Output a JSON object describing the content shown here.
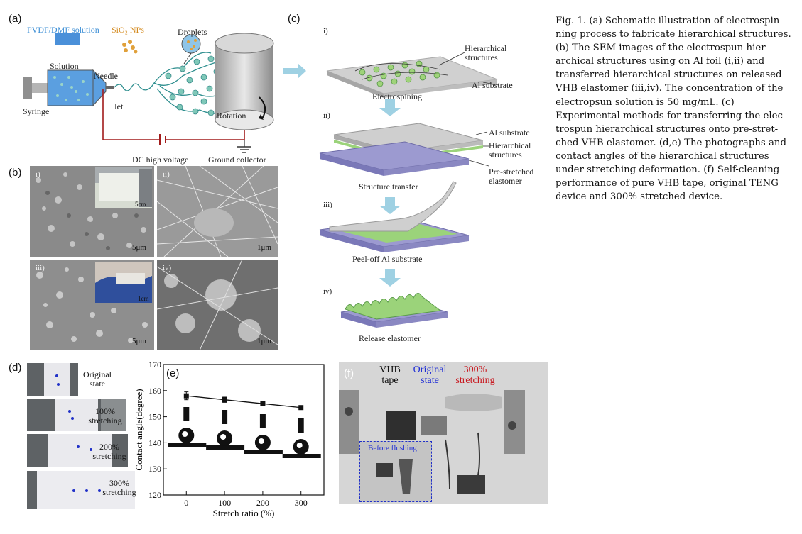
{
  "panels": {
    "a": "(a)",
    "b": "(b)",
    "c": "(c)",
    "d": "(d)",
    "e": "(e)",
    "f": "(f)"
  },
  "schematic": {
    "pvdf": "PVDF/DMF solution",
    "sio2": "SiO₂ NPs",
    "droplets": "Droplets",
    "solution": "Solution",
    "needle": "Needle",
    "syringe": "Syringe",
    "jet": "Jet",
    "rotation": "Rotation",
    "dc_voltage": "DC high voltage",
    "ground": "Ground collector"
  },
  "sem": {
    "labels": [
      "i)",
      "ii)",
      "iii)",
      "iv)"
    ],
    "scale": [
      "5μm",
      "1μm",
      "5μm",
      "1μm"
    ],
    "inset_scale": [
      "5cm",
      "1cm"
    ]
  },
  "process": {
    "steps": [
      "i)",
      "ii)",
      "iii)",
      "iv)"
    ],
    "hier1": "Hierarchical structures",
    "al1": "Al substrate",
    "cap1": "Electrospining",
    "al2": "Al substrate",
    "hier2": "Hierarchical structures",
    "pre": "Pre-stretched elastomer",
    "cap2": "Structure transfer",
    "cap3": "Peel-off Al substrate",
    "cap4": "Release elastomer"
  },
  "photos_d": [
    {
      "label": "Original state"
    },
    {
      "label": "100% stretching"
    },
    {
      "label": "200% stretching"
    },
    {
      "label": "300% stretching"
    }
  ],
  "chart_data": {
    "type": "line",
    "x": [
      0,
      100,
      200,
      300
    ],
    "series": [
      {
        "values": [
          158,
          156.5,
          155,
          153.5
        ],
        "errors": [
          1.5,
          1,
          0.8,
          0.5
        ]
      }
    ],
    "xlabel": "Stretch ratio (%)",
    "ylabel": "Contact angle(degree)",
    "xticks": [
      "0",
      "100",
      "200",
      "300"
    ],
    "yticks": [
      "120",
      "130",
      "140",
      "150",
      "160",
      "170"
    ],
    "ylim": [
      120,
      170
    ],
    "xlim": [
      -60,
      360
    ],
    "grid": false,
    "legend": "none"
  },
  "panel_f": {
    "vhb": "VHB tape",
    "original": "Original state",
    "stretch": "300% stretching",
    "before": "Before flushing",
    "colors": {
      "vhb": "#111111",
      "original": "#1f2dd6",
      "stretch": "#c8161d"
    }
  },
  "caption": {
    "lines": [
      "Fig. 1. (a) Schematic illustration of electrospin-",
      "ning process to fabricate hierarchical structures.",
      "(b) The SEM images of the electrospun hier-",
      "archical structures using on Al foil (i,ii) and",
      "transferred hierarchical structures on released",
      "VHB elastomer (iii,iv). The concentration of the",
      "electropsun solution is 50 mg/mL. (c)",
      "Experimental methods for transferring the elec-",
      "trospun hierarchical structures onto pre-stret-",
      "ched VHB elastomer. (d,e) The photographs and",
      "contact angles of the hierarchical structures",
      "under stretching deformation. (f) Self-cleaning",
      "performance of pure VHB tape, original TENG",
      "device and 300% stretched device."
    ]
  }
}
